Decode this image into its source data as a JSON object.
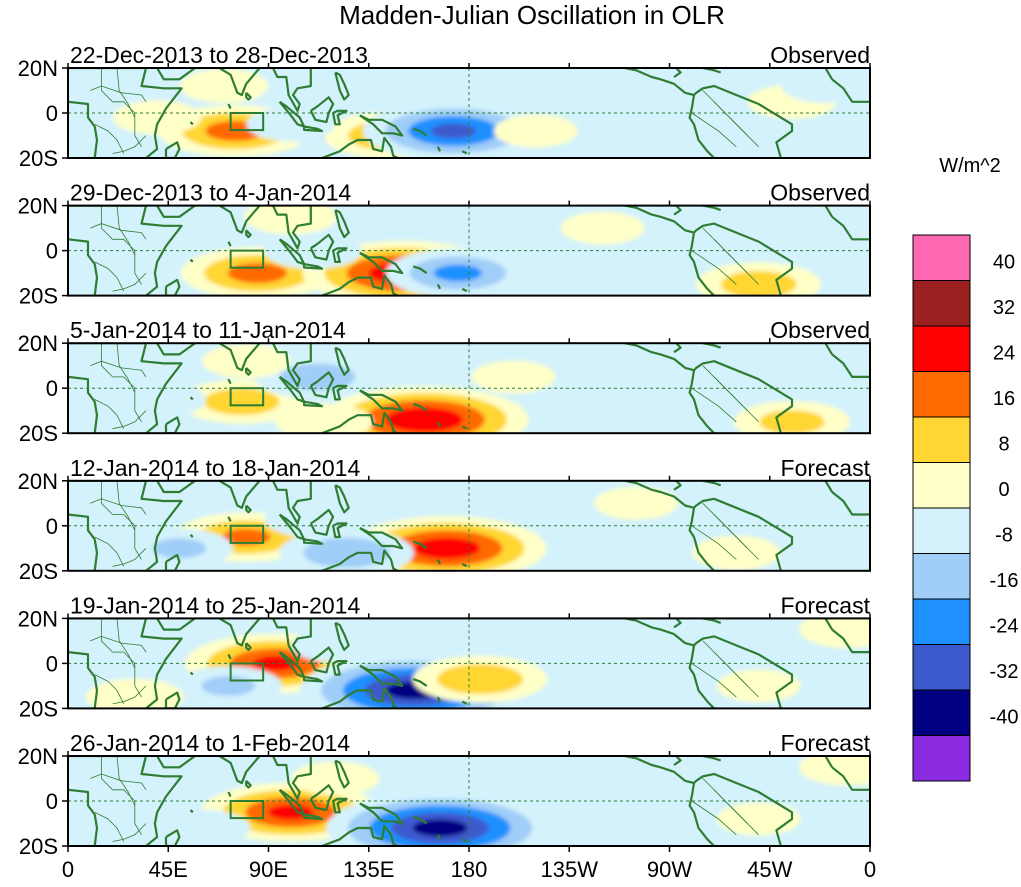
{
  "chart_data": {
    "type": "heatmap",
    "title": "Madden-Julian Oscillation in OLR",
    "units": "W/m^2",
    "y_tick_labels": [
      "20N",
      "0",
      "20S"
    ],
    "x_tick_labels": [
      "0",
      "45E",
      "90E",
      "135E",
      "180",
      "135W",
      "90W",
      "45W",
      "0"
    ],
    "x_range_deg_east": [
      0,
      360
    ],
    "y_range_deg": [
      -20,
      20
    ],
    "panels": [
      {
        "dates": "22-Dec-2013 to 28-Dec-2013",
        "status": "Observed"
      },
      {
        "dates": "29-Dec-2013 to 4-Jan-2014",
        "status": "Observed"
      },
      {
        "dates": "5-Jan-2014 to 11-Jan-2014",
        "status": "Observed"
      },
      {
        "dates": "12-Jan-2014 to 18-Jan-2014",
        "status": "Forecast"
      },
      {
        "dates": "19-Jan-2014 to 25-Jan-2014",
        "status": "Forecast"
      },
      {
        "dates": "26-Jan-2014 to 1-Feb-2014",
        "status": "Forecast"
      }
    ],
    "colorbar": {
      "labels": [
        "40",
        "32",
        "24",
        "16",
        "8",
        "0",
        "-8",
        "-16",
        "-24",
        "-32",
        "-40"
      ],
      "colors": [
        "#ff69b4",
        "#9b2020",
        "#ff0000",
        "#ff6a00",
        "#ffd633",
        "#ffffc8",
        "#d4f2fc",
        "#a0cef8",
        "#1e90ff",
        "#3c5acd",
        "#000080",
        "#8a2be2"
      ]
    },
    "anomalies": [
      [
        {
          "lon": 75,
          "lat": -8,
          "v": 20
        },
        {
          "lon": 125,
          "lat": -8,
          "v": -12
        },
        {
          "lon": 145,
          "lat": -10,
          "v": 16
        },
        {
          "lon": 173,
          "lat": -8,
          "v": -26
        },
        {
          "lon": 70,
          "lat": 12,
          "v": 6
        },
        {
          "lon": 150,
          "lat": 15,
          "v": -6
        },
        {
          "lon": 210,
          "lat": -8,
          "v": 5
        },
        {
          "lon": 325,
          "lat": 5,
          "v": 6
        },
        {
          "lon": 340,
          "lat": 12,
          "v": -6
        },
        {
          "lon": 40,
          "lat": -2,
          "v": 6
        },
        {
          "lon": 100,
          "lat": -5,
          "v": -6
        }
      ],
      [
        {
          "lon": 85,
          "lat": -10,
          "v": 20
        },
        {
          "lon": 150,
          "lat": -10,
          "v": 30
        },
        {
          "lon": 175,
          "lat": -10,
          "v": -18
        },
        {
          "lon": 110,
          "lat": 0,
          "v": -8
        },
        {
          "lon": 30,
          "lat": -5,
          "v": -8
        },
        {
          "lon": 310,
          "lat": -15,
          "v": 14
        },
        {
          "lon": 100,
          "lat": 15,
          "v": 7
        },
        {
          "lon": 240,
          "lat": 10,
          "v": 5
        },
        {
          "lon": 330,
          "lat": 15,
          "v": -6
        }
      ],
      [
        {
          "lon": 78,
          "lat": -6,
          "v": 14
        },
        {
          "lon": 160,
          "lat": -14,
          "v": 32
        },
        {
          "lon": 112,
          "lat": 5,
          "v": -14
        },
        {
          "lon": 40,
          "lat": -5,
          "v": -8
        },
        {
          "lon": 115,
          "lat": -15,
          "v": 8
        },
        {
          "lon": 325,
          "lat": -15,
          "v": 12
        },
        {
          "lon": 200,
          "lat": 5,
          "v": 5
        },
        {
          "lon": 250,
          "lat": 15,
          "v": -5
        },
        {
          "lon": 80,
          "lat": 12,
          "v": 6
        }
      ],
      [
        {
          "lon": 80,
          "lat": -5,
          "v": 18
        },
        {
          "lon": 170,
          "lat": -10,
          "v": 30
        },
        {
          "lon": 125,
          "lat": -12,
          "v": -16
        },
        {
          "lon": 50,
          "lat": -10,
          "v": -10
        },
        {
          "lon": 110,
          "lat": 3,
          "v": -8
        },
        {
          "lon": 300,
          "lat": -12,
          "v": 6
        },
        {
          "lon": 345,
          "lat": 10,
          "v": -6
        },
        {
          "lon": 255,
          "lat": 10,
          "v": 5
        }
      ],
      [
        {
          "lon": 93,
          "lat": 0,
          "v": 26
        },
        {
          "lon": 155,
          "lat": -12,
          "v": -36
        },
        {
          "lon": 185,
          "lat": -7,
          "v": 16
        },
        {
          "lon": 72,
          "lat": -10,
          "v": -10
        },
        {
          "lon": 30,
          "lat": -15,
          "v": 8
        },
        {
          "lon": 120,
          "lat": 8,
          "v": -6
        },
        {
          "lon": 350,
          "lat": 15,
          "v": 8
        },
        {
          "lon": 310,
          "lat": -10,
          "v": 5
        }
      ],
      [
        {
          "lon": 100,
          "lat": -5,
          "v": 26
        },
        {
          "lon": 167,
          "lat": -12,
          "v": -36
        },
        {
          "lon": 60,
          "lat": -12,
          "v": -8
        },
        {
          "lon": 120,
          "lat": 10,
          "v": 6
        },
        {
          "lon": 350,
          "lat": 15,
          "v": 8
        },
        {
          "lon": 310,
          "lat": -8,
          "v": 5
        },
        {
          "lon": 200,
          "lat": 12,
          "v": -5
        }
      ]
    ]
  }
}
